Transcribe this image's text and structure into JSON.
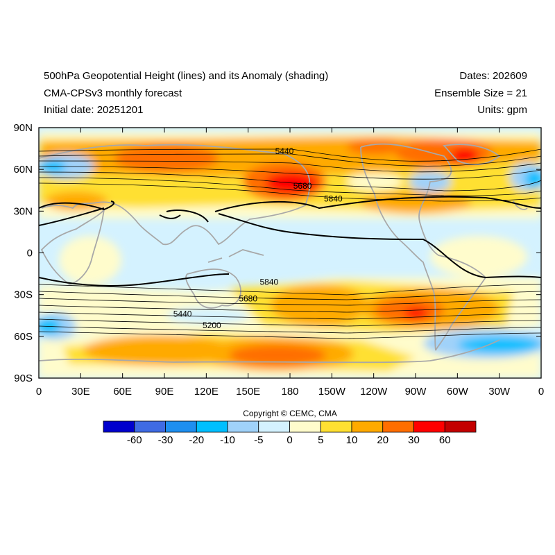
{
  "header": {
    "title": "500hPa Geopotential Height (lines) and its Anomaly (shading)",
    "model": "CMA-CPSv3 monthly forecast",
    "initial_date": "Initial date: 20251201",
    "dates": "Dates: 202609",
    "ensemble": "Ensemble Size = 21",
    "units": "Units: gpm"
  },
  "axes": {
    "lat_ticks": [
      "90N",
      "60N",
      "30N",
      "0",
      "30S",
      "60S",
      "90S"
    ],
    "lon_ticks": [
      "0",
      "30E",
      "60E",
      "90E",
      "120E",
      "150E",
      "180",
      "150W",
      "120W",
      "90W",
      "60W",
      "30W",
      "0"
    ]
  },
  "contour_labels": [
    {
      "text": "5440",
      "lon": 176,
      "lat": 73
    },
    {
      "text": "5680",
      "lon": 189,
      "lat": 48
    },
    {
      "text": "5840",
      "lon": 211,
      "lat": 39
    },
    {
      "text": "5840",
      "lon": 165,
      "lat": -21
    },
    {
      "text": "5680",
      "lon": 150,
      "lat": -33
    },
    {
      "text": "5440",
      "lon": 103,
      "lat": -44
    },
    {
      "text": "5200",
      "lon": 124,
      "lat": -52
    }
  ],
  "copyright": "Copyright © CEMC, CMA",
  "colorbar": {
    "colors": [
      "#0000cd",
      "#3f6be3",
      "#1e8ff0",
      "#00bfff",
      "#a0d2f9",
      "#d4f2ff",
      "#fffccc",
      "#ffe032",
      "#ffaa00",
      "#ff6e00",
      "#ff0000",
      "#c30000"
    ],
    "labels": [
      "-60",
      "-30",
      "-20",
      "-10",
      "-5",
      "0",
      "5",
      "10",
      "20",
      "30",
      "60"
    ]
  }
}
